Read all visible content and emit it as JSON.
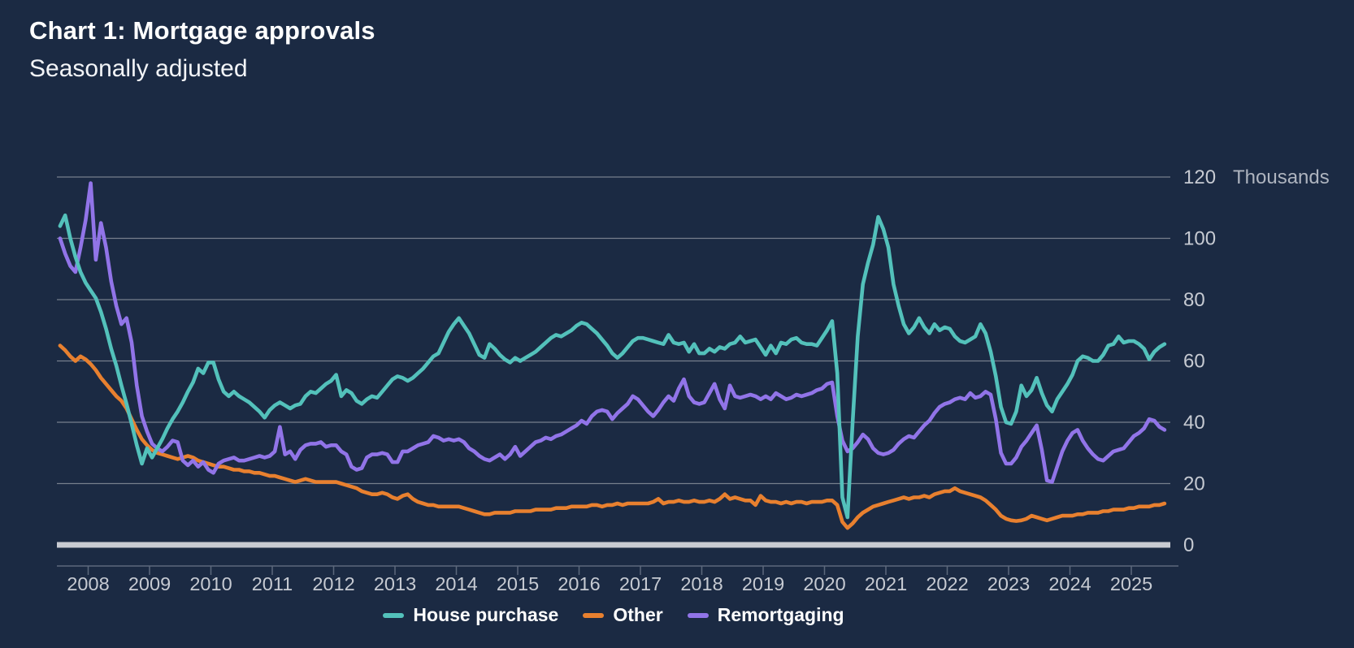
{
  "header": {
    "title": "Chart 1: Mortgage approvals",
    "subtitle": "Seasonally adjusted"
  },
  "chart_data": {
    "type": "line",
    "title": "Chart 1: Mortgage approvals",
    "subtitle": "Seasonally adjusted",
    "unit_label": "Thousands",
    "x_start_month": "2007-07",
    "x_end_month": "2025-07",
    "x_tick_years": [
      2008,
      2009,
      2010,
      2011,
      2012,
      2013,
      2014,
      2015,
      2016,
      2017,
      2018,
      2019,
      2020,
      2021,
      2022,
      2023,
      2024,
      2025
    ],
    "y_ticks": [
      0,
      20,
      40,
      60,
      80,
      100,
      120
    ],
    "ylim": [
      0,
      120
    ],
    "grid": true,
    "legend_position": "bottom",
    "colors": {
      "background": "#1B2A43",
      "gridline": "#8F95A0",
      "zero_line": "#C8CBD2",
      "axis_line": "#5C687C",
      "tick_label": "#C6CAD2",
      "unit_label": "#AEB4BF",
      "title_text": "#FFFFFF"
    },
    "series": [
      {
        "name": "Other",
        "color": "#E8802F",
        "values": [
          65,
          63.5,
          61.5,
          60,
          61.5,
          60.5,
          59,
          57,
          54.5,
          52.5,
          50.5,
          48.5,
          47,
          44.5,
          41,
          37.5,
          34.5,
          32.5,
          31,
          30,
          29.5,
          29,
          28.5,
          28,
          28.5,
          29,
          28.5,
          27.5,
          27,
          26.5,
          26,
          25.5,
          25.5,
          25,
          24.5,
          24.5,
          24,
          24,
          23.5,
          23.5,
          23,
          22.5,
          22.5,
          22,
          21.5,
          21,
          20.5,
          21,
          21.5,
          21,
          20.5,
          20.5,
          20.5,
          20.5,
          20.5,
          20,
          19.5,
          19,
          18.5,
          17.5,
          17,
          16.5,
          16.5,
          17,
          16.5,
          15.5,
          15,
          16,
          16.5,
          15,
          14,
          13.5,
          13,
          13,
          12.5,
          12.5,
          12.5,
          12.5,
          12.5,
          12,
          11.5,
          11,
          10.5,
          10,
          10,
          10.5,
          10.5,
          10.5,
          10.5,
          11,
          11,
          11,
          11,
          11.5,
          11.5,
          11.5,
          11.5,
          12,
          12,
          12,
          12.5,
          12.5,
          12.5,
          12.5,
          13,
          13,
          12.5,
          13,
          13,
          13.5,
          13,
          13.5,
          13.5,
          13.5,
          13.5,
          13.5,
          14,
          15,
          13.5,
          14,
          14,
          14.5,
          14,
          14,
          14.5,
          14,
          14,
          14.5,
          14,
          15,
          16.5,
          15,
          15.5,
          15,
          14.5,
          14.5,
          13,
          16,
          14.5,
          14,
          14,
          13.5,
          14,
          13.5,
          14,
          14,
          13.5,
          14,
          14,
          14,
          14.5,
          14.5,
          13,
          7.5,
          5.5,
          7,
          9,
          10.5,
          11.5,
          12.5,
          13,
          13.5,
          14,
          14.5,
          15,
          15.5,
          15,
          15.5,
          15.5,
          16,
          15.5,
          16.5,
          17,
          17.5,
          17.5,
          18.5,
          17.5,
          17,
          16.5,
          16,
          15.5,
          14.5,
          13,
          11.5,
          9.5,
          8.5,
          8,
          7.8,
          8,
          8.5,
          9.5,
          9,
          8.5,
          8,
          8.5,
          9,
          9.5,
          9.5,
          9.5,
          10,
          10,
          10.5,
          10.5,
          10.5,
          11,
          11,
          11.5,
          11.5,
          11.5,
          12,
          12,
          12.5,
          12.5,
          12.5,
          13,
          13,
          13.5
        ]
      },
      {
        "name": "Remortgaging",
        "color": "#9174E8",
        "values": [
          100,
          95,
          91,
          89,
          97,
          106,
          118,
          93,
          105,
          97,
          86,
          78,
          72,
          74,
          66,
          52,
          42,
          37,
          33,
          31.5,
          30.5,
          32,
          34,
          33.5,
          27.5,
          26,
          27.5,
          25.5,
          27,
          24.5,
          23.5,
          26.5,
          27.5,
          28,
          28.5,
          27.5,
          27.5,
          28,
          28.5,
          29,
          28.5,
          29,
          30.5,
          38.5,
          29.5,
          30.5,
          28,
          31,
          32.5,
          33,
          33,
          33.5,
          32,
          32.5,
          32.5,
          30.5,
          29.5,
          25.5,
          24.5,
          25,
          28.5,
          29.5,
          29.5,
          30,
          29.5,
          27,
          27,
          30.5,
          30.5,
          31.5,
          32.5,
          33,
          33.5,
          35.5,
          35,
          34,
          34.5,
          34,
          34.5,
          33.5,
          31.5,
          30.5,
          29,
          28,
          27.5,
          28.5,
          29.5,
          28,
          29.5,
          32,
          29,
          30.5,
          32,
          33.5,
          34,
          35,
          34.5,
          35.5,
          36,
          37,
          38,
          39,
          40.5,
          39.5,
          42,
          43.5,
          44,
          43.5,
          41,
          43,
          44.5,
          46,
          48.5,
          47.5,
          45.5,
          43.5,
          42,
          44,
          46.5,
          48.5,
          47,
          51,
          54,
          48.5,
          46.5,
          46,
          46.5,
          49.5,
          52.5,
          47.5,
          44.5,
          52,
          48.5,
          48,
          48.5,
          49,
          48.5,
          47.5,
          48.5,
          47.5,
          49.5,
          48.5,
          47.5,
          48,
          49,
          48.5,
          49,
          49.5,
          50.5,
          51,
          52.5,
          53,
          42,
          34,
          30.5,
          31.5,
          33.5,
          36,
          34.5,
          31.5,
          30,
          29.5,
          30,
          31,
          33,
          34.5,
          35.5,
          35,
          37,
          39,
          40.5,
          43,
          45,
          46,
          46.5,
          47.5,
          48,
          47.5,
          49.5,
          48,
          48.5,
          50,
          49,
          41,
          30,
          26.5,
          26.5,
          28.5,
          32,
          34,
          36.5,
          39,
          31,
          21,
          20.5,
          25.5,
          30.5,
          34,
          36.5,
          37.5,
          34,
          31.5,
          29.5,
          28,
          27.5,
          29,
          30.5,
          31,
          31.5,
          33.5,
          35.5,
          36.5,
          38,
          41,
          40.5,
          38.5,
          37.5
        ]
      },
      {
        "name": "House purchase",
        "color": "#53C1BB",
        "values": [
          104,
          107.5,
          100,
          94,
          89,
          85.5,
          83,
          80.5,
          76,
          70.5,
          64,
          58.5,
          52,
          46,
          39.5,
          32.5,
          26.5,
          31.5,
          28.5,
          31.5,
          34.5,
          38,
          41,
          43.5,
          46.5,
          50,
          53,
          57.5,
          56,
          59.5,
          59.5,
          54,
          50,
          48.5,
          50,
          48.5,
          47.5,
          46.5,
          45,
          43.5,
          41.5,
          44,
          45.5,
          46.5,
          45.5,
          44.5,
          45.5,
          46,
          48.5,
          50,
          49.5,
          51,
          52.5,
          53.5,
          55.5,
          48.5,
          50.5,
          49.5,
          47,
          46,
          47.5,
          48.5,
          48,
          50,
          52,
          54,
          55,
          54.5,
          53.5,
          54.5,
          56,
          57.5,
          59.5,
          61.5,
          62.5,
          66,
          69.5,
          72,
          74,
          71.5,
          69,
          65.5,
          62,
          61,
          65.5,
          64,
          62,
          60.5,
          59.5,
          61,
          60,
          61,
          62,
          63,
          64.5,
          66,
          67.5,
          68.5,
          68,
          69,
          70,
          71.5,
          72.5,
          72,
          70.5,
          69,
          67,
          65,
          62.5,
          61,
          62.5,
          64.5,
          66.5,
          67.5,
          67.5,
          67,
          66.5,
          66,
          65.5,
          68.5,
          66,
          65.5,
          66,
          63,
          65.5,
          62.5,
          62.5,
          64,
          63,
          64.5,
          64,
          65.5,
          66,
          68,
          66,
          66.5,
          67,
          64.5,
          62,
          65,
          62.5,
          66,
          65.5,
          67,
          67.5,
          66,
          65.5,
          65.5,
          65,
          67.5,
          70,
          73,
          56,
          15.5,
          9,
          40,
          68,
          85,
          92,
          98,
          107,
          103,
          97,
          85,
          78,
          72,
          69,
          71,
          74,
          71,
          69,
          72,
          70,
          71,
          70.5,
          68,
          66.5,
          66,
          67,
          68,
          72,
          69,
          63,
          55,
          45,
          40,
          39.5,
          43.5,
          52,
          48.5,
          50.5,
          54.5,
          49.5,
          45.5,
          43.5,
          47.5,
          50,
          52.5,
          55.5,
          60,
          61.5,
          61,
          60,
          60,
          62,
          65,
          65.5,
          68,
          66,
          66.5,
          66.5,
          65.5,
          64,
          60.5,
          63,
          64.5,
          65.5
        ]
      }
    ]
  },
  "legend": {
    "items": [
      "House purchase",
      "Other",
      "Remortgaging"
    ]
  }
}
